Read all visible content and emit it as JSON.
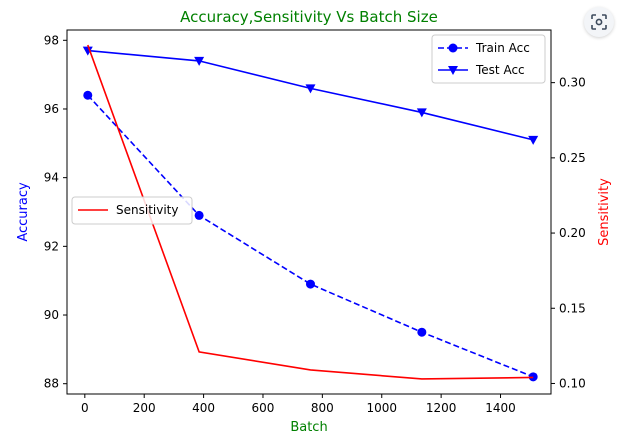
{
  "lens_icon": "image-search-icon",
  "chart_data": {
    "type": "line",
    "title": "Accuracy,Sensitivity Vs Batch Size",
    "xlabel": "Batch",
    "ylabel_left": "Accuracy",
    "ylabel_right": "Sensitivity",
    "x": [
      10,
      385,
      760,
      1135,
      1510
    ],
    "xlim": [
      -60,
      1570
    ],
    "ylim_left": [
      87.7,
      98.3
    ],
    "ylim_right": [
      0.093,
      0.335
    ],
    "x_ticks": [
      0,
      200,
      400,
      600,
      800,
      1000,
      1200,
      1400
    ],
    "y_ticks_left": [
      88,
      90,
      92,
      94,
      96,
      98
    ],
    "y_ticks_right": [
      0.1,
      0.15,
      0.2,
      0.25,
      0.3
    ],
    "grid": false,
    "series": [
      {
        "name": "Train Acc",
        "axis": "left",
        "style": "dashed",
        "marker": "circle",
        "color": "#0000ff",
        "values": [
          96.4,
          92.9,
          90.9,
          89.5,
          88.2
        ]
      },
      {
        "name": "Test Acc",
        "axis": "left",
        "style": "solid",
        "marker": "triangle-down",
        "color": "#0000ff",
        "values": [
          97.7,
          97.4,
          96.6,
          95.9,
          95.1
        ]
      },
      {
        "name": "Sensitivity",
        "axis": "right",
        "style": "solid",
        "marker": "none",
        "color": "#ff0000",
        "values": [
          0.325,
          0.121,
          0.109,
          0.103,
          0.104
        ]
      }
    ],
    "legends": [
      {
        "placement": "top-right",
        "entries": [
          "Train Acc",
          "Test Acc"
        ]
      },
      {
        "placement": "center-left",
        "entries": [
          "Sensitivity"
        ]
      }
    ],
    "colors": {
      "title": "#008000",
      "xlabel": "#008000",
      "ylabel_left": "#0000ff",
      "ylabel_right": "#ff0000"
    }
  }
}
